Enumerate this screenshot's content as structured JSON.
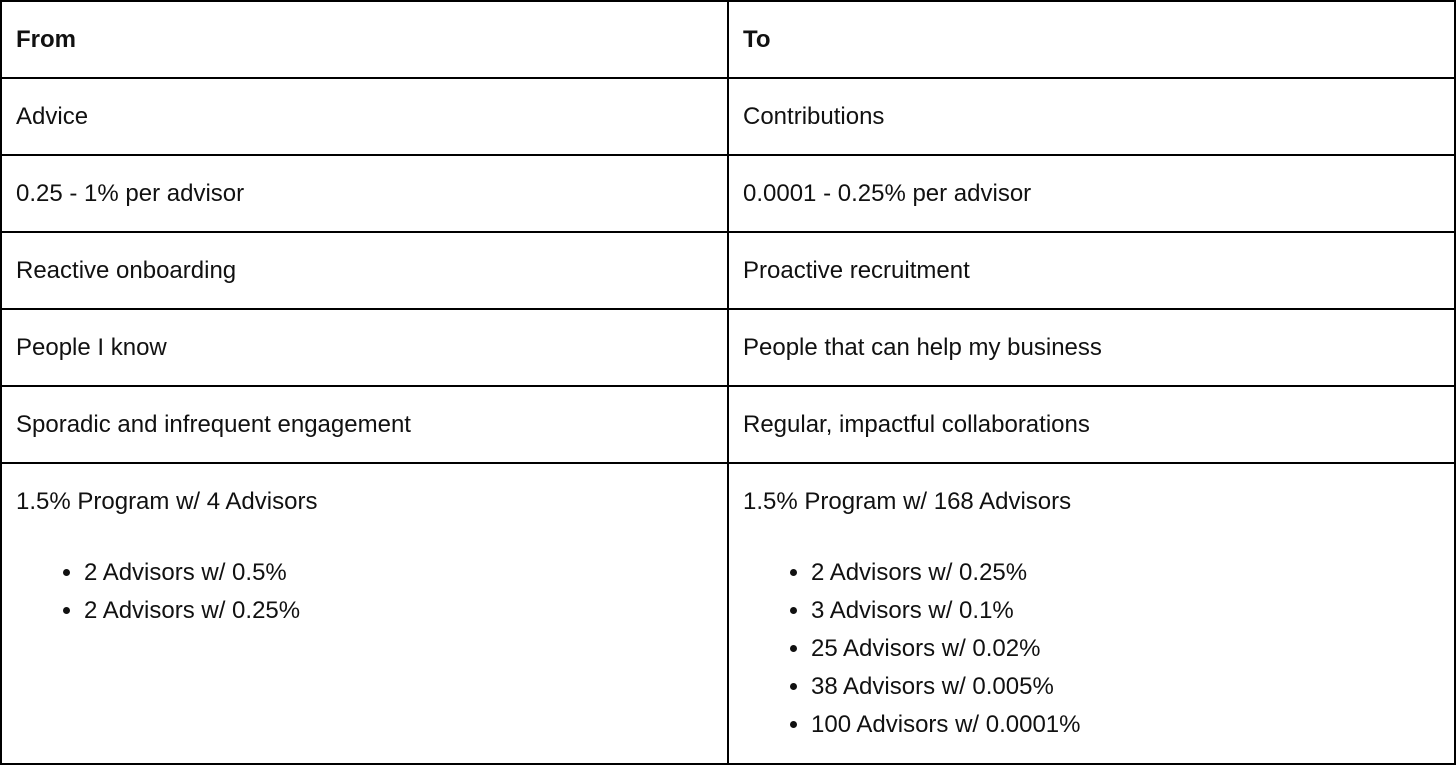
{
  "colors": {
    "border": "#000000",
    "text": "#111111",
    "background": "#ffffff"
  },
  "table": {
    "columns": [
      {
        "label": "From"
      },
      {
        "label": "To"
      }
    ],
    "rows": [
      {
        "from": "Advice",
        "to": "Contributions"
      },
      {
        "from": "0.25 - 1% per advisor",
        "to": "0.0001 - 0.25% per advisor"
      },
      {
        "from": "Reactive onboarding",
        "to": "Proactive recruitment"
      },
      {
        "from": "People I know",
        "to": "People that can help my business"
      },
      {
        "from": "Sporadic and infrequent engagement",
        "to": "Regular, impactful collaborations"
      },
      {
        "from": {
          "title": "1.5% Program w/ 4 Advisors",
          "bullets": [
            "2 Advisors w/ 0.5%",
            "2 Advisors w/ 0.25%"
          ]
        },
        "to": {
          "title": "1.5% Program w/ 168 Advisors",
          "bullets": [
            "2 Advisors w/ 0.25%",
            "3 Advisors w/ 0.1%",
            "25 Advisors w/ 0.02%",
            "38 Advisors w/ 0.005%",
            "100 Advisors w/ 0.0001%"
          ]
        }
      }
    ]
  }
}
